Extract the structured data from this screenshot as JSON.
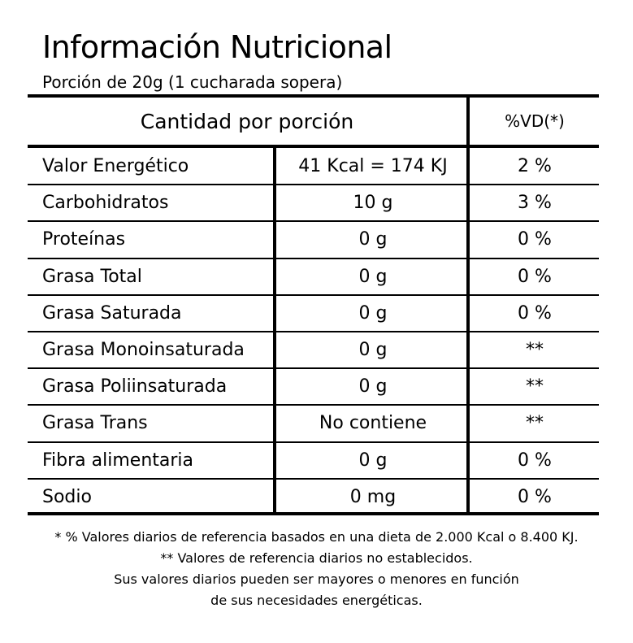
{
  "title": "Información Nutricional",
  "serving": "Porción de 20g (1 cucharada sopera)",
  "table": {
    "header_quantity": "Cantidad por porción",
    "header_vd": "%VD(*)",
    "rows": [
      {
        "name": "Valor Energético",
        "amount": "41 Kcal = 174 KJ",
        "vd": "2 %"
      },
      {
        "name": "Carbohidratos",
        "amount": "10 g",
        "vd": "3 %"
      },
      {
        "name": "Proteínas",
        "amount": "0 g",
        "vd": "0 %"
      },
      {
        "name": "Grasa Total",
        "amount": "0 g",
        "vd": "0 %"
      },
      {
        "name": "Grasa Saturada",
        "amount": "0 g",
        "vd": "0 %"
      },
      {
        "name": "Grasa Monoinsaturada",
        "amount": "0 g",
        "vd": "**"
      },
      {
        "name": "Grasa Poliinsaturada",
        "amount": "0 g",
        "vd": "**"
      },
      {
        "name": "Grasa Trans",
        "amount": "No contiene",
        "vd": "**"
      },
      {
        "name": "Fibra alimentaria",
        "amount": "0 g",
        "vd": "0 %"
      },
      {
        "name": "Sodio",
        "amount": "0 mg",
        "vd": "0 %"
      }
    ]
  },
  "footnotes": [
    "* % Valores diarios de referencia basados en una dieta de 2.000 Kcal o 8.400 KJ.",
    "** Valores de referencia diarios no establecidos.",
    "Sus valores diarios pueden ser mayores o menores en función",
    "de sus necesidades energéticas."
  ]
}
